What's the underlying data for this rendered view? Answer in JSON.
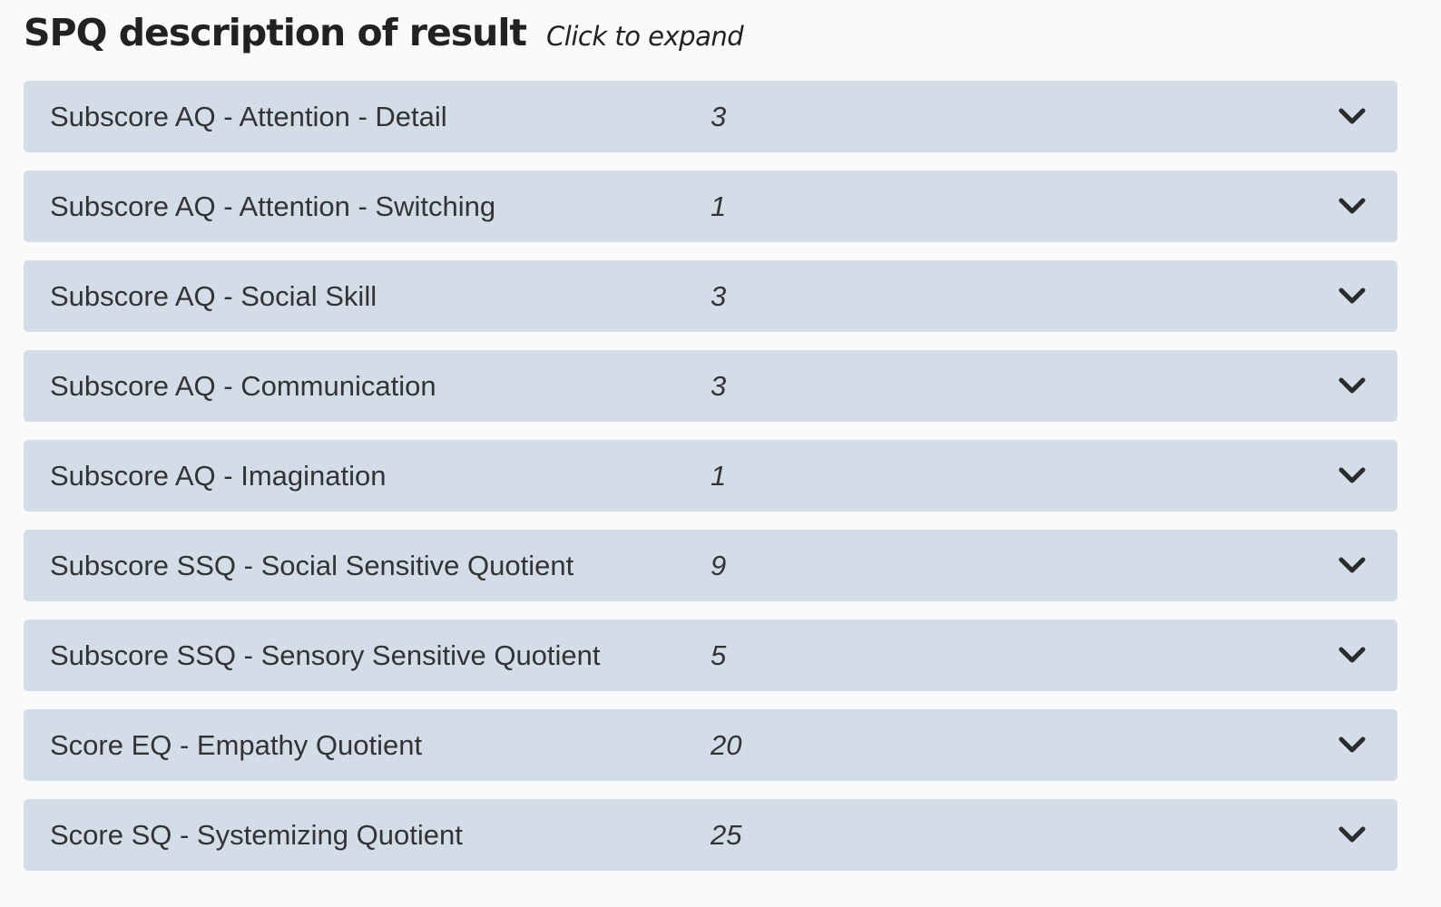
{
  "header": {
    "title": "SPQ description of result",
    "hint": "Click to expand"
  },
  "rows": [
    {
      "label": "Subscore AQ - Attention - Detail",
      "value": "3"
    },
    {
      "label": "Subscore AQ - Attention - Switching",
      "value": "1"
    },
    {
      "label": "Subscore AQ - Social Skill",
      "value": "3"
    },
    {
      "label": "Subscore AQ - Communication",
      "value": "3"
    },
    {
      "label": "Subscore AQ - Imagination",
      "value": "1"
    },
    {
      "label": "Subscore SSQ - Social Sensitive Quotient",
      "value": "9"
    },
    {
      "label": "Subscore SSQ - Sensory Sensitive Quotient",
      "value": "5"
    },
    {
      "label": "Score EQ - Empathy Quotient",
      "value": "20"
    },
    {
      "label": "Score SQ - Systemizing Quotient",
      "value": "25"
    }
  ],
  "icons": {
    "expand": "chevron-down-icon"
  }
}
